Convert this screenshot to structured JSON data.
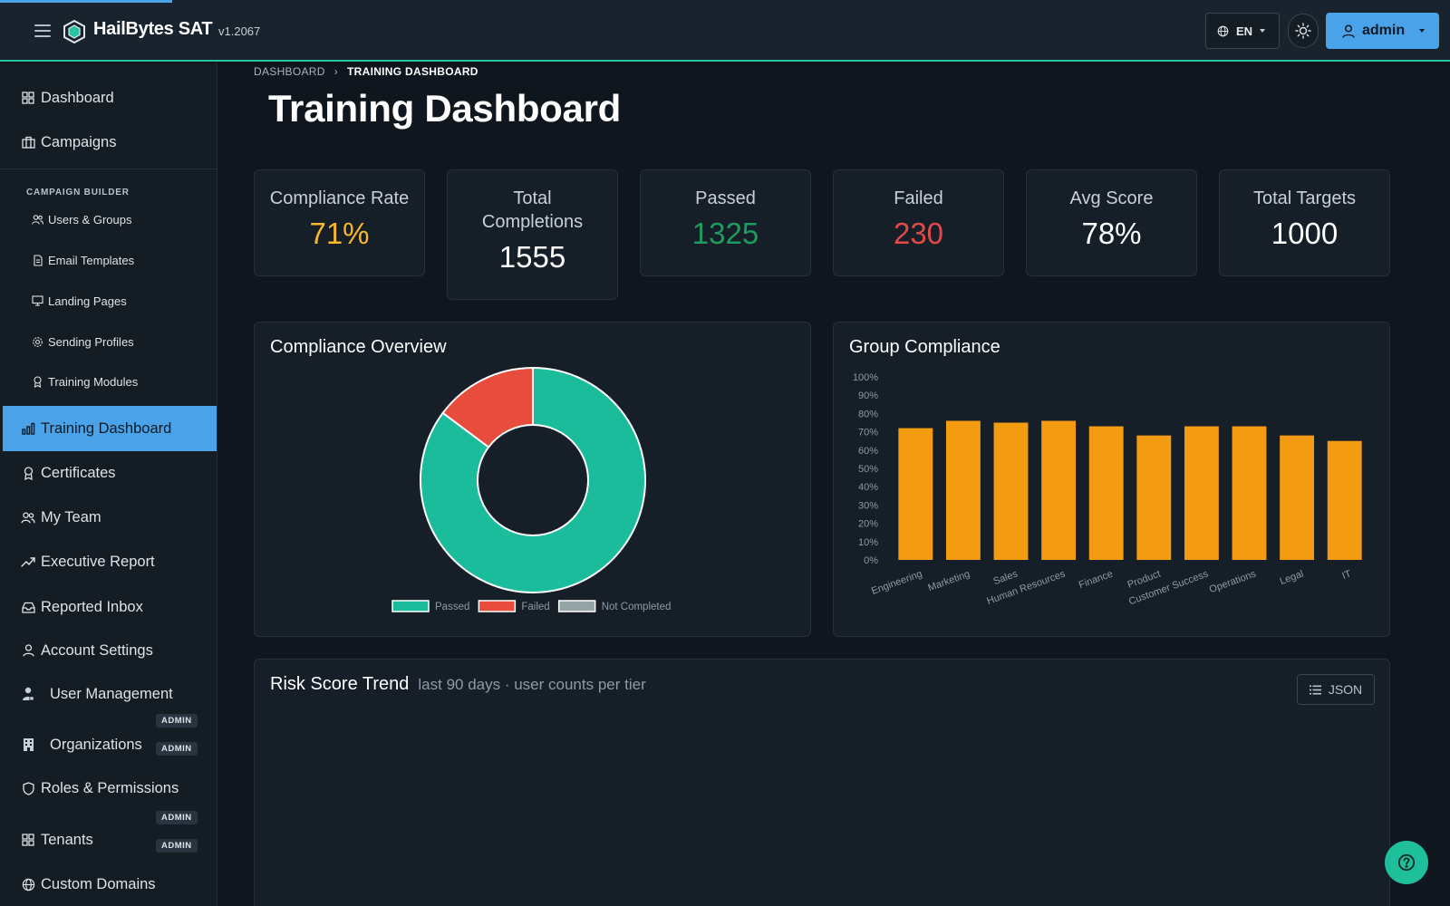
{
  "header": {
    "brand": "HailBytes SAT",
    "version": "v1.2067",
    "language": "EN",
    "user": "admin"
  },
  "sidebar": {
    "items_top": [
      {
        "label": "Dashboard",
        "icon": "grid-icon"
      },
      {
        "label": "Campaigns",
        "icon": "briefcase-icon"
      }
    ],
    "section_label": "CAMPAIGN BUILDER",
    "builder_items": [
      {
        "label": "Users & Groups",
        "icon": "users-icon"
      },
      {
        "label": "Email Templates",
        "icon": "file-icon"
      },
      {
        "label": "Landing Pages",
        "icon": "monitor-icon"
      },
      {
        "label": "Sending Profiles",
        "icon": "gear-icon"
      },
      {
        "label": "Training Modules",
        "icon": "award-icon"
      }
    ],
    "items_bottom": [
      {
        "label": "Training Dashboard",
        "icon": "bar-chart-icon",
        "active": true
      },
      {
        "label": "Certificates",
        "icon": "award-icon"
      },
      {
        "label": "My Team",
        "icon": "users-icon"
      },
      {
        "label": "Executive Report",
        "icon": "trend-icon"
      },
      {
        "label": "Reported Inbox",
        "icon": "inbox-icon"
      },
      {
        "label": "Account Settings",
        "icon": "user-icon"
      },
      {
        "label": "User Management",
        "icon": "user-lock-icon",
        "badge": "ADMIN"
      },
      {
        "label": "Organizations",
        "icon": "building-icon",
        "badge": "ADMIN"
      },
      {
        "label": "Roles & Permissions",
        "icon": "shield-icon",
        "badge": "ADMIN"
      },
      {
        "label": "Tenants",
        "icon": "grid-icon",
        "badge": "ADMIN"
      },
      {
        "label": "Custom Domains",
        "icon": "globe-icon"
      }
    ]
  },
  "breadcrumb": {
    "root": "DASHBOARD",
    "separator": "›",
    "current": "TRAINING DASHBOARD"
  },
  "page_title": "Training Dashboard",
  "stats": [
    {
      "label": "Compliance Rate",
      "value": "71%",
      "color": "#f5b82e"
    },
    {
      "label": "Total Completions",
      "value": "1555",
      "color": "#ffffff"
    },
    {
      "label": "Passed",
      "value": "1325",
      "color": "#1f9b5f"
    },
    {
      "label": "Failed",
      "value": "230",
      "color": "#e04a4a"
    },
    {
      "label": "Avg Score",
      "value": "78%",
      "color": "#ffffff"
    },
    {
      "label": "Total Targets",
      "value": "1000",
      "color": "#ffffff"
    }
  ],
  "compliance_card": {
    "title": "Compliance Overview"
  },
  "group_card": {
    "title": "Group Compliance"
  },
  "risk_card": {
    "title": "Risk Score Trend",
    "subtitle": "last 90 days · user counts per tier",
    "json_label": "JSON"
  },
  "chart_data": [
    {
      "type": "pie",
      "title": "Compliance Overview",
      "labels": [
        "Passed",
        "Failed",
        "Not Completed"
      ],
      "values": [
        1325,
        230,
        0
      ],
      "colors": [
        "#1abc9c",
        "#e74c3c",
        "#95a5a6"
      ],
      "legend": "bottom"
    },
    {
      "type": "bar",
      "title": "Group Compliance",
      "categories": [
        "Engineering",
        "Marketing",
        "Sales",
        "Human Resources",
        "Finance",
        "Product",
        "Customer Success",
        "Operations",
        "Legal",
        "IT"
      ],
      "values": [
        72,
        76,
        75,
        76,
        73,
        68,
        73,
        73,
        68,
        65
      ],
      "ylim": [
        0,
        100
      ],
      "yticks": [
        "0%",
        "10%",
        "20%",
        "30%",
        "40%",
        "50%",
        "60%",
        "70%",
        "80%",
        "90%",
        "100%"
      ],
      "color": "#f39c12",
      "grid": false
    }
  ]
}
